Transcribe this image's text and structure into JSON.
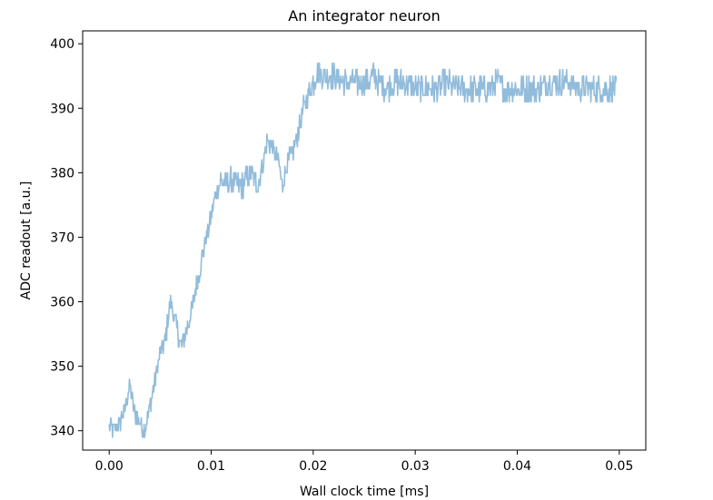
{
  "chart_data": {
    "type": "line",
    "title": "An integrator neuron",
    "xlabel": "Wall clock time [ms]",
    "ylabel": "ADC readout [a.u.]",
    "xlim": [
      -0.0026,
      0.0526
    ],
    "ylim": [
      337,
      402
    ],
    "xticks": [
      0.0,
      0.01,
      0.02,
      0.03,
      0.04,
      0.05
    ],
    "xtick_labels": [
      "0.00",
      "0.01",
      "0.02",
      "0.03",
      "0.04",
      "0.05"
    ],
    "yticks": [
      340,
      350,
      360,
      370,
      380,
      390,
      400
    ],
    "ytick_labels": [
      "340",
      "350",
      "360",
      "370",
      "380",
      "390",
      "400"
    ],
    "grid": false,
    "legend": false,
    "series": [
      {
        "color": "#8cb8d9",
        "line_alpha": 0.5,
        "x": [
          0.0,
          0.0005,
          0.001,
          0.0015,
          0.002,
          0.0025,
          0.003,
          0.0035,
          0.004,
          0.0045,
          0.005,
          0.0055,
          0.006,
          0.0065,
          0.007,
          0.0075,
          0.008,
          0.0085,
          0.009,
          0.0095,
          0.01,
          0.0105,
          0.011,
          0.0115,
          0.012,
          0.0125,
          0.013,
          0.0135,
          0.014,
          0.0145,
          0.015,
          0.0155,
          0.016,
          0.0165,
          0.017,
          0.0175,
          0.018,
          0.0185,
          0.019,
          0.0195,
          0.02,
          0.0205,
          0.021,
          0.022,
          0.023,
          0.024,
          0.025,
          0.026,
          0.027,
          0.028,
          0.029,
          0.03,
          0.031,
          0.032,
          0.033,
          0.034,
          0.035,
          0.036,
          0.037,
          0.038,
          0.039,
          0.04,
          0.041,
          0.042,
          0.043,
          0.044,
          0.045,
          0.046,
          0.047,
          0.048,
          0.049,
          0.0497
        ],
        "y": [
          341,
          340,
          341,
          343,
          347,
          343,
          341,
          340,
          344,
          348,
          352,
          354,
          360,
          357,
          353,
          355,
          358,
          362,
          366,
          370,
          373,
          377,
          379,
          378,
          379,
          378,
          378,
          379,
          380,
          378,
          381,
          385,
          384,
          382,
          378,
          382,
          383,
          386,
          390,
          392,
          394,
          396,
          395,
          395,
          394,
          394,
          394,
          395,
          393,
          394,
          394,
          393,
          393,
          393,
          394,
          393,
          393,
          393,
          393,
          394,
          393,
          393,
          393,
          393,
          394,
          394,
          394,
          393,
          393,
          393,
          393,
          393
        ],
        "noise_amplitude": [
          1.5,
          1.5,
          1.5,
          1.5,
          1.5,
          1.5,
          1.5,
          1.5,
          1.5,
          1.5,
          1.5,
          1.5,
          1.5,
          1.5,
          1.5,
          1.5,
          1.5,
          1.5,
          1.5,
          1.5,
          1.5,
          1.5,
          2.0,
          2.0,
          2.0,
          2.0,
          2.0,
          2.0,
          2.0,
          2.0,
          1.5,
          1.5,
          1.5,
          1.5,
          1.5,
          1.5,
          1.5,
          1.5,
          1.5,
          1.5,
          2.0,
          2.0,
          2.0,
          2.0,
          2.0,
          2.0,
          2.0,
          2.0,
          2.0,
          2.0,
          2.0,
          2.0,
          2.0,
          2.0,
          2.0,
          2.0,
          2.0,
          2.0,
          2.0,
          2.0,
          2.0,
          2.0,
          2.0,
          2.0,
          2.0,
          2.0,
          2.0,
          2.0,
          2.0,
          2.0,
          2.0,
          2.0
        ]
      }
    ]
  }
}
